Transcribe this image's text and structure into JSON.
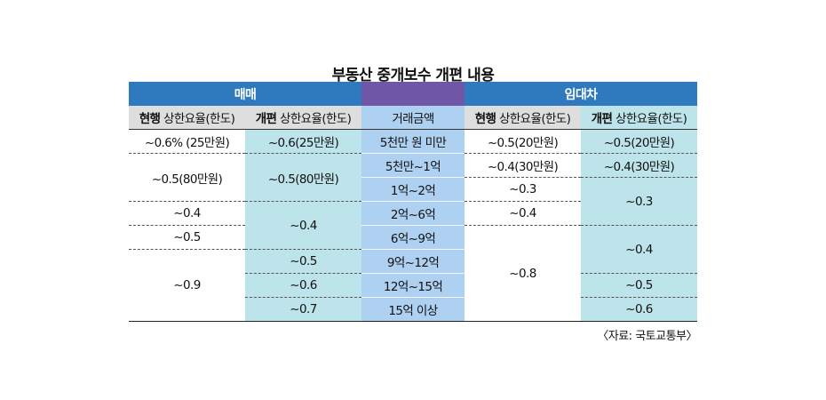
{
  "title": "부동산 중개보수 개편 내용",
  "groups": {
    "sale": "매매",
    "lease": "임대차"
  },
  "headers": {
    "current_prefix": "현행",
    "reform_prefix": "개편",
    "rate_cap": " 상한요율(한도)",
    "amount": "거래금액"
  },
  "rows": {
    "r1": {
      "sale_current": "~0.6% (25만원)",
      "sale_reform": "~0.6(25만원)",
      "amount": "5천만 원 미만",
      "lease_current": "~0.5(20만원)",
      "lease_reform": "~0.5(20만원)"
    },
    "r2": {
      "sale_current": "~0.5(80만원)",
      "sale_reform": "~0.5(80만원)",
      "amount": "5천만~1억",
      "lease_current": "~0.4(30만원)",
      "lease_reform": "~0.4(30만원)"
    },
    "r3": {
      "amount": "1억~2억",
      "lease_current": "~0.3",
      "lease_reform": "~0.3"
    },
    "r4": {
      "sale_current": "~0.4",
      "sale_reform": "~0.4",
      "amount": "2억~6억",
      "lease_current": "~0.4"
    },
    "r5": {
      "sale_current": "~0.5",
      "amount": "6억~9억",
      "lease_current": "~0.8",
      "lease_reform": "~0.4"
    },
    "r6": {
      "sale_current": "~0.9",
      "sale_reform": "~0.5",
      "amount": "9억~12억"
    },
    "r7": {
      "sale_reform": "~0.6",
      "amount": "12억~15억",
      "lease_reform": "~0.5"
    },
    "r8": {
      "sale_reform": "~0.7",
      "amount": "15억 이상",
      "lease_reform": "~0.6"
    }
  },
  "source": "〈자료: 국토교통부〉",
  "colors": {
    "header_blue": "#2f79bf",
    "header_purple": "#6f56a7",
    "teal": "#bde4ea",
    "amount_blue": "#aed1f2",
    "header_gray": "#dedede"
  }
}
